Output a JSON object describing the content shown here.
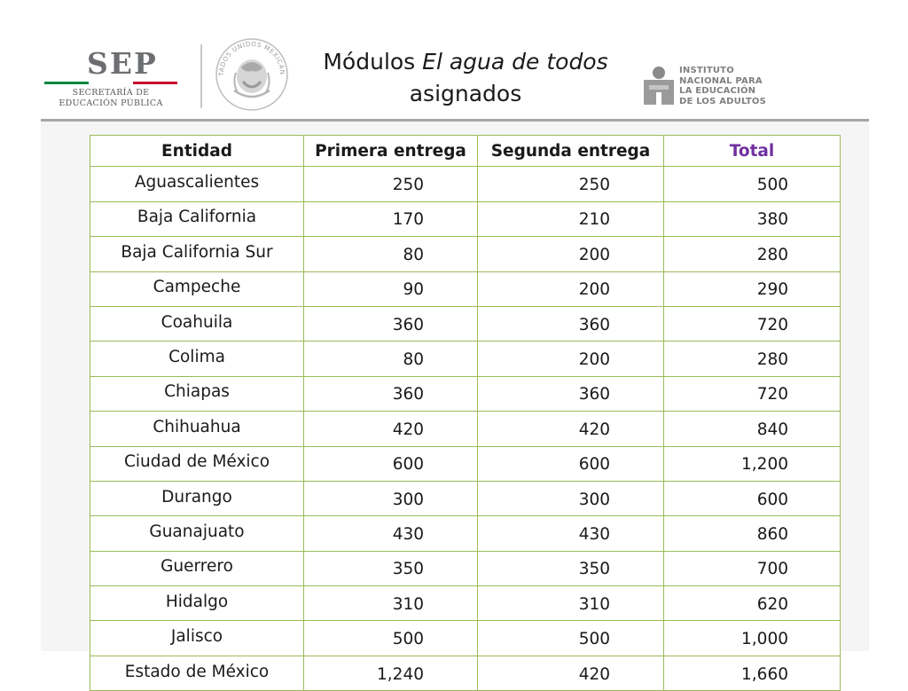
{
  "header": {
    "sep": {
      "acronym": "SEP",
      "line1": "SECRETARÍA DE",
      "line2": "EDUCACIÓN PÚBLICA"
    },
    "seal_text": "ESTADOS UNIDOS MEXICANOS",
    "title": {
      "prefix": "Módulos ",
      "italic": "El agua de todos",
      "line2": "asignados"
    },
    "inea": {
      "line1": "INSTITUTO",
      "line2": "NACIONAL PARA",
      "line3": "LA EDUCACIÓN",
      "line4": "DE LOS ADULTOS"
    }
  },
  "table": {
    "headers": [
      "Entidad",
      "Primera entrega",
      "Segunda entrega",
      "Total"
    ],
    "rows": [
      [
        "Aguascalientes",
        "250",
        "250",
        "500"
      ],
      [
        "Baja California",
        "170",
        "210",
        "380"
      ],
      [
        "Baja California Sur",
        "80",
        "200",
        "280"
      ],
      [
        "Campeche",
        "90",
        "200",
        "290"
      ],
      [
        "Coahuila",
        "360",
        "360",
        "720"
      ],
      [
        "Colima",
        "80",
        "200",
        "280"
      ],
      [
        "Chiapas",
        "360",
        "360",
        "720"
      ],
      [
        "Chihuahua",
        "420",
        "420",
        "840"
      ],
      [
        "Ciudad de México",
        "600",
        "600",
        "1,200"
      ],
      [
        "Durango",
        "300",
        "300",
        "600"
      ],
      [
        "Guanajuato",
        "430",
        "430",
        "860"
      ],
      [
        "Guerrero",
        "350",
        "350",
        "700"
      ],
      [
        "Hidalgo",
        "310",
        "310",
        "620"
      ],
      [
        "Jalisco",
        "500",
        "500",
        "1,000"
      ],
      [
        "Estado de México",
        "1,240",
        "420",
        "1,660"
      ]
    ]
  },
  "colors": {
    "table_border": "#9bbb59",
    "total_header": "#7030a0",
    "logo_gray": "#808080",
    "flag_green": "#00853f",
    "flag_red": "#c8102e"
  }
}
